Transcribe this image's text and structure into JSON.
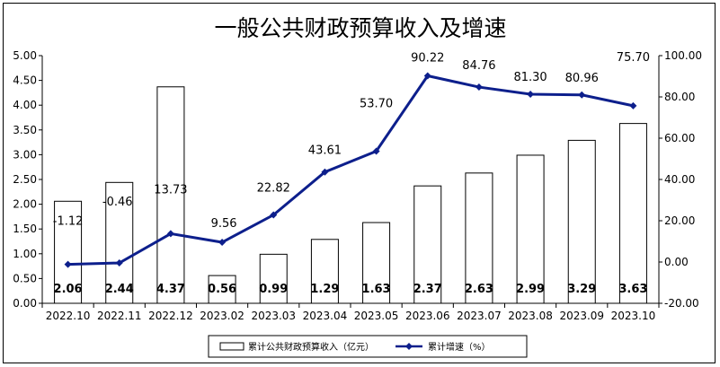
{
  "chart_data": {
    "type": "bar+line",
    "title": "一般公共财政预算收入及增速",
    "categories": [
      "2022.10",
      "2022.11",
      "2022.12",
      "2023.02",
      "2023.03",
      "2023.04",
      "2023.05",
      "2023.06",
      "2023.07",
      "2023.08",
      "2023.09",
      "2023.10"
    ],
    "series": [
      {
        "name": "累计公共财政预算收入（亿元）",
        "type": "bar",
        "axis": "left",
        "values": [
          2.06,
          2.44,
          4.37,
          0.56,
          0.99,
          1.29,
          1.63,
          2.37,
          2.63,
          2.99,
          3.29,
          3.63
        ],
        "labels": [
          "2.06",
          "2.44",
          "4.37",
          "0.56",
          "0.99",
          "1.29",
          "1.63",
          "2.37",
          "2.63",
          "2.99",
          "3.29",
          "3.63"
        ]
      },
      {
        "name": "累计增速（%）",
        "type": "line",
        "axis": "right",
        "values": [
          -1.12,
          -0.46,
          13.73,
          9.56,
          22.82,
          43.61,
          53.7,
          90.22,
          84.76,
          81.3,
          80.96,
          75.7
        ],
        "labels": [
          "-1.12",
          "-0.46",
          "13.73",
          "9.56",
          "22.82",
          "43.61",
          "53.70",
          "90.22",
          "84.76",
          "81.30",
          "80.96",
          "75.70"
        ],
        "color": "#0D1F8C"
      }
    ],
    "y_left": {
      "range": [
        0,
        5
      ],
      "ticks": [
        0,
        0.5,
        1,
        1.5,
        2,
        2.5,
        3,
        3.5,
        4,
        4.5,
        5
      ],
      "tick_labels": [
        "0.00",
        "0.50",
        "1.00",
        "1.50",
        "2.00",
        "2.50",
        "3.00",
        "3.50",
        "4.00",
        "4.50",
        "5.00"
      ]
    },
    "y_right": {
      "range": [
        -20,
        100
      ],
      "ticks": [
        -20,
        0,
        20,
        40,
        60,
        80,
        100
      ],
      "tick_labels": [
        "-20.00",
        "0.00",
        "20.00",
        "40.00",
        "60.00",
        "80.00",
        "100.00"
      ]
    },
    "grid": false,
    "legend": "bottom"
  }
}
